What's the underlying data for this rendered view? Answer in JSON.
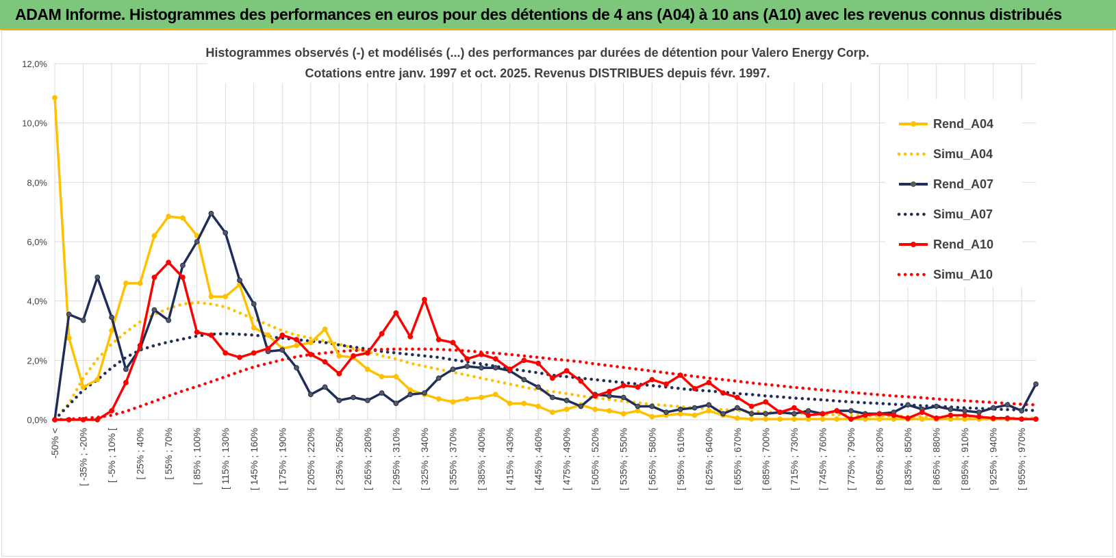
{
  "header": {
    "title": "ADAM Informe. Histogrammes des performances en euros pour des détentions de 4 ans (A04) à 10 ans (A10) avec les revenus connus distribués"
  },
  "colors": {
    "A04": "#ffc000",
    "A07": "#1f2d5a",
    "A10": "#ff0000",
    "grid": "#d9d9d9",
    "text": "#404040"
  },
  "chart_data": {
    "type": "line",
    "title": "Histogrammes observés (-) et modélisés (...) des performances par durées de détention pour Valero Energy Corp.",
    "subtitle": "Cotations entre janv. 1997 et oct. 2025.  Revenus DISTRIBUES depuis févr. 1997.",
    "xlabel": "",
    "ylabel": "",
    "ylim": [
      0,
      12
    ],
    "yticks": [
      "0,0%",
      "2,0%",
      "4,0%",
      "6,0%",
      "8,0%",
      "10,0%",
      "12,0%"
    ],
    "grid": true,
    "legend_position": "right",
    "category_labels": [
      "-50% <",
      "[ -35% ; -20%",
      "[ -5% ; 10% [",
      "[ 25% ; 40%",
      "[ 55% ; 70%",
      "[ 85% ; 100%",
      "[ 115% ; 130%",
      "[ 145% ; 160%",
      "[ 175% ; 190%",
      "[ 205% ; 220%",
      "[ 235% ; 250%",
      "[ 265% ; 280%",
      "[ 295% ; 310%",
      "[ 325% ; 340%",
      "[ 355% ; 370%",
      "[ 385% ; 400%",
      "[ 415% ; 430%",
      "[ 445% ; 460%",
      "[ 475% ; 490%",
      "[ 505% ; 520%",
      "[ 535% ; 550%",
      "[ 565% ; 580%",
      "[ 595% ; 610%",
      "[ 625% ; 640%",
      "[ 655% ; 670%",
      "[ 685% ; 700%",
      "[ 715% ; 730%",
      "[ 745% ; 760%",
      "[ 775% ; 790%",
      "[ 805% ; 820%",
      "[ 835% ; 850%",
      "[ 865% ; 880%",
      "[ 895% ; 910%",
      "[ 925% ; 940%",
      "[ 955% ; 970%"
    ],
    "label_every": 2,
    "n_points": 70,
    "series": [
      {
        "name": "Rend_A04",
        "key": "A04",
        "style": "solid",
        "values": [
          10.85,
          2.75,
          1.1,
          1.35,
          3.0,
          4.6,
          4.6,
          6.2,
          6.85,
          6.8,
          6.2,
          4.15,
          4.15,
          4.55,
          3.1,
          2.85,
          2.4,
          2.5,
          2.6,
          3.05,
          2.15,
          2.1,
          1.7,
          1.45,
          1.45,
          1.0,
          0.85,
          0.7,
          0.6,
          0.7,
          0.75,
          0.85,
          0.55,
          0.55,
          0.45,
          0.25,
          0.35,
          0.5,
          0.35,
          0.3,
          0.2,
          0.3,
          0.1,
          0.15,
          0.2,
          0.15,
          0.3,
          0.15,
          0.05,
          0.02,
          0.02,
          0.02,
          0.02,
          0.02,
          0.02,
          0.02,
          0.02,
          0.02,
          0.02,
          0.02,
          0.02,
          0.02,
          0.02,
          0.02,
          0.02,
          0.02,
          0.02,
          0.02,
          0.02,
          0.02
        ]
      },
      {
        "name": "Simu_A04",
        "key": "A04",
        "style": "dotted",
        "values": [
          0.0,
          0.55,
          1.4,
          2.05,
          2.55,
          2.95,
          3.3,
          3.55,
          3.75,
          3.9,
          3.95,
          3.9,
          3.8,
          3.6,
          3.4,
          3.2,
          3.0,
          2.85,
          2.75,
          2.65,
          2.55,
          2.4,
          2.3,
          2.15,
          2.05,
          1.9,
          1.8,
          1.7,
          1.6,
          1.5,
          1.4,
          1.3,
          1.2,
          1.1,
          1.0,
          0.95,
          0.88,
          0.8,
          0.74,
          0.68,
          0.62,
          0.57,
          0.52,
          0.48,
          0.44,
          0.4,
          0.37,
          0.34,
          0.31,
          0.28,
          0.26,
          0.24,
          0.22,
          0.2,
          0.18,
          0.17,
          0.15,
          0.14,
          0.13,
          0.12,
          0.11,
          0.1,
          0.09,
          0.08,
          0.07,
          0.07,
          0.06,
          0.06,
          0.05,
          0.05
        ]
      },
      {
        "name": "Rend_A07",
        "key": "A07",
        "style": "solid",
        "values": [
          0.0,
          3.55,
          3.35,
          4.8,
          3.45,
          1.7,
          2.4,
          3.7,
          3.35,
          5.2,
          6.0,
          6.95,
          6.3,
          4.7,
          3.9,
          2.3,
          2.35,
          1.75,
          0.85,
          1.1,
          0.65,
          0.75,
          0.65,
          0.9,
          0.55,
          0.85,
          0.9,
          1.4,
          1.7,
          1.8,
          1.75,
          1.75,
          1.65,
          1.35,
          1.1,
          0.75,
          0.65,
          0.45,
          0.85,
          0.8,
          0.75,
          0.45,
          0.45,
          0.25,
          0.35,
          0.4,
          0.5,
          0.2,
          0.4,
          0.2,
          0.2,
          0.25,
          0.2,
          0.3,
          0.2,
          0.3,
          0.3,
          0.2,
          0.2,
          0.25,
          0.5,
          0.35,
          0.45,
          0.35,
          0.3,
          0.25,
          0.4,
          0.5,
          0.3,
          1.2
        ]
      },
      {
        "name": "Simu_A07",
        "key": "A07",
        "style": "dotted",
        "values": [
          0.0,
          0.5,
          1.0,
          1.35,
          1.75,
          2.1,
          2.35,
          2.5,
          2.62,
          2.72,
          2.82,
          2.88,
          2.9,
          2.88,
          2.85,
          2.8,
          2.75,
          2.7,
          2.65,
          2.6,
          2.52,
          2.45,
          2.38,
          2.3,
          2.25,
          2.2,
          2.15,
          2.1,
          2.02,
          1.95,
          1.88,
          1.8,
          1.72,
          1.65,
          1.58,
          1.5,
          1.45,
          1.4,
          1.35,
          1.3,
          1.25,
          1.2,
          1.15,
          1.1,
          1.05,
          1.0,
          0.97,
          0.93,
          0.88,
          0.85,
          0.8,
          0.77,
          0.73,
          0.7,
          0.67,
          0.63,
          0.6,
          0.57,
          0.55,
          0.52,
          0.5,
          0.47,
          0.45,
          0.43,
          0.4,
          0.38,
          0.36,
          0.34,
          0.33,
          0.31
        ]
      },
      {
        "name": "Rend_A10",
        "key": "A10",
        "style": "solid",
        "values": [
          0.0,
          0.0,
          0.0,
          0.0,
          0.3,
          1.25,
          2.5,
          4.8,
          5.3,
          4.8,
          2.95,
          2.85,
          2.25,
          2.1,
          2.25,
          2.4,
          2.85,
          2.7,
          2.2,
          1.95,
          1.55,
          2.15,
          2.25,
          2.9,
          3.6,
          2.8,
          4.05,
          2.7,
          2.6,
          2.05,
          2.2,
          2.05,
          1.7,
          2.0,
          1.9,
          1.4,
          1.65,
          1.3,
          0.8,
          0.95,
          1.15,
          1.1,
          1.35,
          1.2,
          1.5,
          1.05,
          1.25,
          0.9,
          0.75,
          0.45,
          0.6,
          0.25,
          0.4,
          0.15,
          0.2,
          0.3,
          0.02,
          0.15,
          0.2,
          0.15,
          0.05,
          0.25,
          0.05,
          0.15,
          0.15,
          0.1,
          0.05,
          0.05,
          0.02,
          0.02
        ]
      },
      {
        "name": "Simu_A10",
        "key": "A10",
        "style": "dotted",
        "values": [
          0.0,
          0.02,
          0.05,
          0.08,
          0.15,
          0.28,
          0.45,
          0.62,
          0.8,
          0.97,
          1.12,
          1.28,
          1.45,
          1.62,
          1.78,
          1.9,
          2.02,
          2.12,
          2.2,
          2.25,
          2.3,
          2.33,
          2.35,
          2.37,
          2.38,
          2.38,
          2.38,
          2.37,
          2.35,
          2.32,
          2.28,
          2.24,
          2.2,
          2.15,
          2.1,
          2.05,
          2.0,
          1.95,
          1.88,
          1.82,
          1.76,
          1.7,
          1.64,
          1.58,
          1.52,
          1.46,
          1.4,
          1.35,
          1.3,
          1.24,
          1.19,
          1.14,
          1.09,
          1.05,
          1.0,
          0.96,
          0.92,
          0.88,
          0.84,
          0.8,
          0.77,
          0.74,
          0.7,
          0.67,
          0.64,
          0.61,
          0.58,
          0.55,
          0.52,
          0.5
        ]
      }
    ]
  }
}
